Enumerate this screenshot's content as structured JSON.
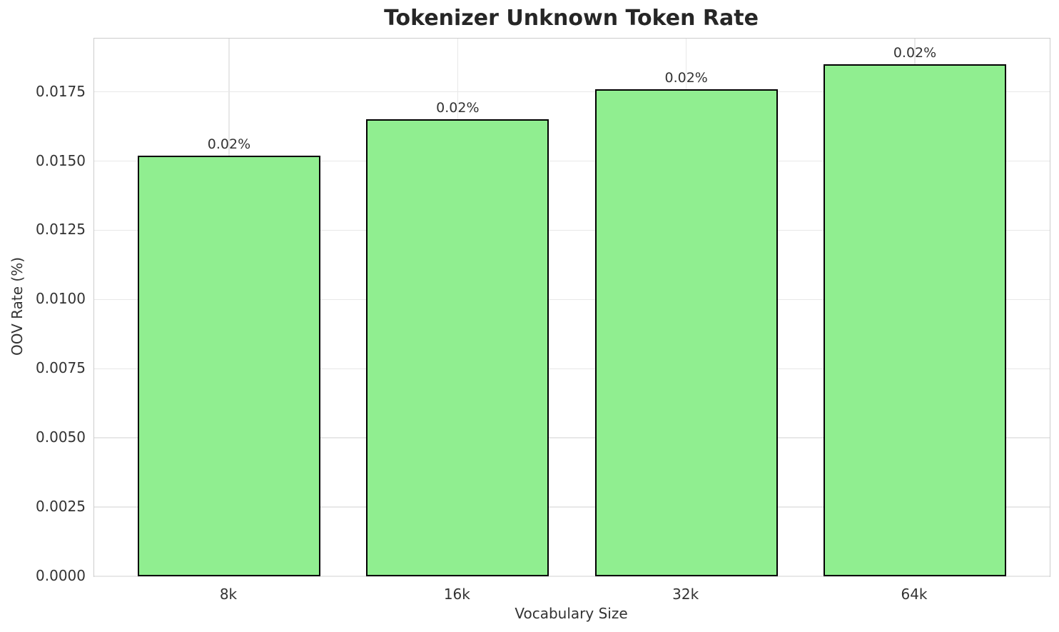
{
  "chart_data": {
    "type": "bar",
    "title": "Tokenizer Unknown Token Rate",
    "xlabel": "Vocabulary Size",
    "ylabel": "OOV Rate (%)",
    "categories": [
      "8k",
      "16k",
      "32k",
      "64k"
    ],
    "values": [
      0.0152,
      0.0165,
      0.0176,
      0.0185
    ],
    "bar_labels": [
      "0.02%",
      "0.02%",
      "0.02%",
      "0.02%"
    ],
    "ytick_values": [
      0.0,
      0.0025,
      0.005,
      0.0075,
      0.01,
      0.0125,
      0.015,
      0.0175
    ],
    "ytick_labels": [
      "0.0000",
      "0.0025",
      "0.0050",
      "0.0075",
      "0.0100",
      "0.0125",
      "0.0150",
      "0.0175"
    ],
    "ylim": [
      0,
      0.019425
    ],
    "xlim": [
      -0.59,
      3.59
    ],
    "bar_width_units": 0.8,
    "grid": true,
    "legend": "none",
    "colors": {
      "bar_fill": "#90EE90",
      "bar_edge": "#000000",
      "grid": "#e8e8e8",
      "spine": "#cccccc",
      "title_text": "#262626",
      "tick_text": "#333333",
      "background": "#ffffff"
    }
  }
}
